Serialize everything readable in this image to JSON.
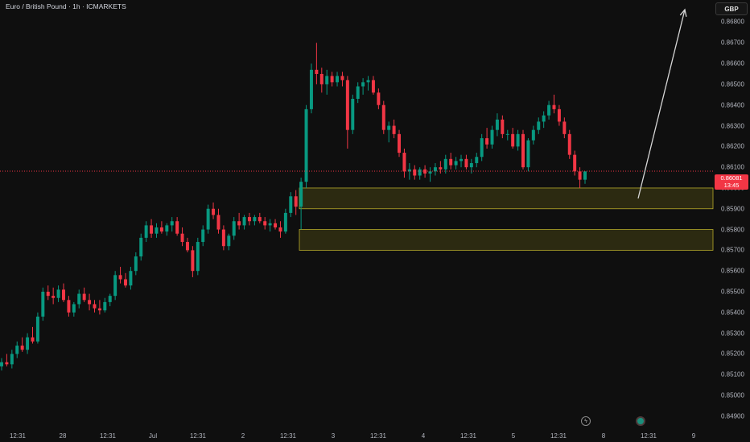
{
  "header": {
    "symbol_title": "Euro / British Pound · 1h · ICMARKETS",
    "currency_button": "GBP"
  },
  "price_axis": {
    "labels": [
      "0.86800",
      "0.86700",
      "0.86600",
      "0.86500",
      "0.86400",
      "0.86300",
      "0.86200",
      "0.86100",
      "0.86000",
      "0.85900",
      "0.85800",
      "0.85700",
      "0.85600",
      "0.85500",
      "0.85400",
      "0.85300",
      "0.85200",
      "0.85100",
      "0.85000",
      "0.84900"
    ],
    "current_price": "0.86081",
    "countdown": "13:45"
  },
  "time_axis": {
    "labels": [
      "12:31",
      "28",
      "12:31",
      "Jul",
      "12:31",
      "2",
      "12:31",
      "3",
      "12:31",
      "4",
      "12:31",
      "5",
      "12:31",
      "8",
      "12:31",
      "9"
    ]
  },
  "colors": {
    "up": "#089981",
    "down": "#f23645",
    "zone_fill": "#2e2c12",
    "zone_border": "#b8ab2a",
    "background": "#0f0f0f",
    "arrow": "#d6d6d6"
  },
  "toolbar_icons": [
    "lightning-icon",
    "status-dot-icon"
  ],
  "chart_data": {
    "type": "candlestick",
    "title": "Euro / British Pound · 1h · ICMARKETS",
    "timeframe": "1h",
    "ylim": [
      0.8488,
      0.8686
    ],
    "x_ticks": [
      "12:31",
      "28",
      "12:31",
      "Jul",
      "12:31",
      "2",
      "12:31",
      "3",
      "12:31",
      "4",
      "12:31",
      "5",
      "12:31",
      "8",
      "12:31",
      "9"
    ],
    "current_price": 0.86081,
    "candles": [
      [
        0.8514,
        0.8518,
        0.8512,
        0.8516
      ],
      [
        0.8516,
        0.852,
        0.8514,
        0.8515
      ],
      [
        0.8515,
        0.8522,
        0.8513,
        0.852
      ],
      [
        0.852,
        0.8526,
        0.8518,
        0.8524
      ],
      [
        0.8524,
        0.8528,
        0.8521,
        0.8522
      ],
      [
        0.8522,
        0.853,
        0.852,
        0.8528
      ],
      [
        0.8528,
        0.8533,
        0.8525,
        0.8526
      ],
      [
        0.8526,
        0.854,
        0.8525,
        0.8538
      ],
      [
        0.8538,
        0.8552,
        0.8536,
        0.855
      ],
      [
        0.855,
        0.8553,
        0.8546,
        0.8548
      ],
      [
        0.8548,
        0.8552,
        0.8544,
        0.8547
      ],
      [
        0.8547,
        0.8553,
        0.8545,
        0.8551
      ],
      [
        0.8551,
        0.8554,
        0.8545,
        0.8546
      ],
      [
        0.8546,
        0.8548,
        0.8538,
        0.854
      ],
      [
        0.854,
        0.8545,
        0.8538,
        0.8544
      ],
      [
        0.8544,
        0.8551,
        0.8542,
        0.8549
      ],
      [
        0.8549,
        0.8552,
        0.8545,
        0.8546
      ],
      [
        0.8546,
        0.8549,
        0.8541,
        0.8544
      ],
      [
        0.8544,
        0.8546,
        0.854,
        0.8542
      ],
      [
        0.8542,
        0.8546,
        0.8539,
        0.8541
      ],
      [
        0.8541,
        0.8547,
        0.854,
        0.8545
      ],
      [
        0.8545,
        0.8549,
        0.8543,
        0.8548
      ],
      [
        0.8548,
        0.856,
        0.8546,
        0.8558
      ],
      [
        0.8558,
        0.8562,
        0.8554,
        0.8556
      ],
      [
        0.8556,
        0.8559,
        0.8552,
        0.8553
      ],
      [
        0.8553,
        0.8562,
        0.8551,
        0.856
      ],
      [
        0.856,
        0.8569,
        0.8558,
        0.8567
      ],
      [
        0.8567,
        0.8578,
        0.8565,
        0.8576
      ],
      [
        0.8576,
        0.8584,
        0.8574,
        0.8582
      ],
      [
        0.8582,
        0.8585,
        0.8576,
        0.8578
      ],
      [
        0.8578,
        0.8583,
        0.8576,
        0.8581
      ],
      [
        0.8581,
        0.8584,
        0.8578,
        0.8579
      ],
      [
        0.8579,
        0.8583,
        0.8577,
        0.8582
      ],
      [
        0.8582,
        0.8586,
        0.8579,
        0.8584
      ],
      [
        0.8584,
        0.8586,
        0.8577,
        0.8578
      ],
      [
        0.8578,
        0.8581,
        0.8572,
        0.8574
      ],
      [
        0.8574,
        0.8576,
        0.8569,
        0.857
      ],
      [
        0.857,
        0.8572,
        0.8557,
        0.856
      ],
      [
        0.856,
        0.8576,
        0.8558,
        0.8574
      ],
      [
        0.8574,
        0.8582,
        0.8572,
        0.858
      ],
      [
        0.858,
        0.8592,
        0.8578,
        0.859
      ],
      [
        0.859,
        0.8593,
        0.8585,
        0.8587
      ],
      [
        0.8587,
        0.859,
        0.8578,
        0.858
      ],
      [
        0.858,
        0.8582,
        0.857,
        0.8572
      ],
      [
        0.8572,
        0.8578,
        0.857,
        0.8577
      ],
      [
        0.8577,
        0.8586,
        0.8575,
        0.8584
      ],
      [
        0.8584,
        0.8588,
        0.858,
        0.8582
      ],
      [
        0.8582,
        0.8587,
        0.858,
        0.8586
      ],
      [
        0.8586,
        0.8588,
        0.8582,
        0.8584
      ],
      [
        0.8584,
        0.8587,
        0.8582,
        0.8586
      ],
      [
        0.8586,
        0.8588,
        0.8583,
        0.8584
      ],
      [
        0.8584,
        0.8586,
        0.858,
        0.8582
      ],
      [
        0.8582,
        0.8585,
        0.8579,
        0.8583
      ],
      [
        0.8583,
        0.8585,
        0.858,
        0.8581
      ],
      [
        0.8581,
        0.8584,
        0.8576,
        0.8579
      ],
      [
        0.8579,
        0.859,
        0.8578,
        0.8588
      ],
      [
        0.8588,
        0.8598,
        0.8586,
        0.8596
      ],
      [
        0.8596,
        0.8599,
        0.8587,
        0.8591
      ],
      [
        0.8591,
        0.8605,
        0.858,
        0.8603
      ],
      [
        0.8603,
        0.864,
        0.86,
        0.8638
      ],
      [
        0.8638,
        0.866,
        0.8636,
        0.8657
      ],
      [
        0.8657,
        0.867,
        0.865,
        0.8655
      ],
      [
        0.8655,
        0.8658,
        0.8646,
        0.865
      ],
      [
        0.865,
        0.8657,
        0.8645,
        0.8654
      ],
      [
        0.8654,
        0.8656,
        0.8649,
        0.8651
      ],
      [
        0.8651,
        0.8656,
        0.8649,
        0.8654
      ],
      [
        0.8654,
        0.8656,
        0.8649,
        0.8652
      ],
      [
        0.8652,
        0.8654,
        0.8619,
        0.8628
      ],
      [
        0.8628,
        0.8645,
        0.8626,
        0.8643
      ],
      [
        0.8643,
        0.8651,
        0.8641,
        0.8649
      ],
      [
        0.8649,
        0.8653,
        0.8645,
        0.8651
      ],
      [
        0.8651,
        0.8654,
        0.8647,
        0.8652
      ],
      [
        0.8652,
        0.8654,
        0.8645,
        0.8646
      ],
      [
        0.8646,
        0.8648,
        0.8638,
        0.864
      ],
      [
        0.864,
        0.8642,
        0.8626,
        0.8628
      ],
      [
        0.8628,
        0.8632,
        0.8622,
        0.863
      ],
      [
        0.863,
        0.8633,
        0.8624,
        0.8626
      ],
      [
        0.8626,
        0.8628,
        0.8615,
        0.8617
      ],
      [
        0.8617,
        0.8619,
        0.8605,
        0.8608
      ],
      [
        0.8608,
        0.8612,
        0.8604,
        0.8609
      ],
      [
        0.8609,
        0.8611,
        0.8604,
        0.8606
      ],
      [
        0.8606,
        0.861,
        0.8604,
        0.8609
      ],
      [
        0.8609,
        0.8611,
        0.8605,
        0.8607
      ],
      [
        0.8607,
        0.861,
        0.8603,
        0.8608
      ],
      [
        0.8608,
        0.8612,
        0.8606,
        0.861
      ],
      [
        0.861,
        0.8613,
        0.8607,
        0.8609
      ],
      [
        0.8609,
        0.8616,
        0.8607,
        0.8614
      ],
      [
        0.8614,
        0.8617,
        0.8609,
        0.8611
      ],
      [
        0.8611,
        0.8615,
        0.8609,
        0.8613
      ],
      [
        0.8613,
        0.8616,
        0.861,
        0.8614
      ],
      [
        0.8614,
        0.8616,
        0.8609,
        0.861
      ],
      [
        0.861,
        0.8614,
        0.8607,
        0.8612
      ],
      [
        0.8612,
        0.8617,
        0.861,
        0.8615
      ],
      [
        0.8615,
        0.8626,
        0.8613,
        0.8624
      ],
      [
        0.8624,
        0.8629,
        0.8619,
        0.8621
      ],
      [
        0.8621,
        0.863,
        0.8619,
        0.8628
      ],
      [
        0.8628,
        0.8636,
        0.8625,
        0.8633
      ],
      [
        0.8633,
        0.8635,
        0.8624,
        0.8626
      ],
      [
        0.8626,
        0.8628,
        0.8623,
        0.8626
      ],
      [
        0.8626,
        0.8629,
        0.8619,
        0.862
      ],
      [
        0.862,
        0.8628,
        0.8618,
        0.8626
      ],
      [
        0.8626,
        0.8628,
        0.8609,
        0.861
      ],
      [
        0.861,
        0.8624,
        0.8608,
        0.8623
      ],
      [
        0.8623,
        0.863,
        0.8621,
        0.8628
      ],
      [
        0.8628,
        0.8634,
        0.8626,
        0.8632
      ],
      [
        0.8632,
        0.8637,
        0.8629,
        0.8635
      ],
      [
        0.8635,
        0.8642,
        0.8633,
        0.864
      ],
      [
        0.864,
        0.8645,
        0.8636,
        0.8638
      ],
      [
        0.8638,
        0.864,
        0.863,
        0.8632
      ],
      [
        0.8632,
        0.8634,
        0.8624,
        0.8626
      ],
      [
        0.8626,
        0.8628,
        0.8614,
        0.8616
      ],
      [
        0.8616,
        0.8618,
        0.8606,
        0.8608
      ],
      [
        0.8608,
        0.861,
        0.86,
        0.8604
      ],
      [
        0.8604,
        0.8608,
        0.8602,
        0.8608
      ]
    ],
    "zones": [
      {
        "from": 0.859,
        "to": 0.86
      },
      {
        "from": 0.857,
        "to": 0.858
      }
    ],
    "arrow": {
      "from_price": 0.8595,
      "to_price": 0.8686
    }
  }
}
